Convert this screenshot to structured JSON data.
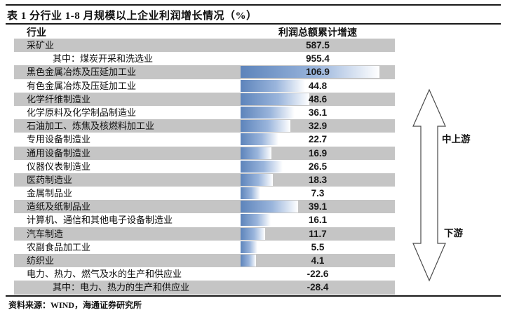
{
  "title": "表 1 分行业 1-8 月规模以上企业利润增长情况（%）",
  "table": {
    "columns": [
      "行业",
      "利润总额累计增速"
    ],
    "rows": [
      {
        "industry": "采矿业",
        "value": 587.5,
        "indent": false,
        "bar": false
      },
      {
        "industry": "其中：煤炭开采和洗选业",
        "value": 955.4,
        "indent": true,
        "bar": false
      },
      {
        "industry": "黑色金属冶炼及压延加工业",
        "value": 106.9,
        "indent": false,
        "bar": true
      },
      {
        "industry": "有色金属冶炼及压延加工业",
        "value": 44.8,
        "indent": false,
        "bar": true
      },
      {
        "industry": "化学纤维制造业",
        "value": 48.6,
        "indent": false,
        "bar": true
      },
      {
        "industry": "化学原料及化学制品制造业",
        "value": 36.1,
        "indent": false,
        "bar": true
      },
      {
        "industry": "石油加工、炼焦及核燃料加工业",
        "value": 32.9,
        "indent": false,
        "bar": true
      },
      {
        "industry": "专用设备制造业",
        "value": 22.7,
        "indent": false,
        "bar": true
      },
      {
        "industry": "通用设备制造业",
        "value": 16.9,
        "indent": false,
        "bar": true
      },
      {
        "industry": "仪器仪表制造业",
        "value": 26.5,
        "indent": false,
        "bar": true
      },
      {
        "industry": "医药制造业",
        "value": 18.3,
        "indent": false,
        "bar": true
      },
      {
        "industry": "金属制品业",
        "value": 7.3,
        "indent": false,
        "bar": true
      },
      {
        "industry": "造纸及纸制品业",
        "value": 39.1,
        "indent": false,
        "bar": true
      },
      {
        "industry": "计算机、通信和其他电子设备制造业",
        "value": 16.1,
        "indent": false,
        "bar": true
      },
      {
        "industry": "汽车制造",
        "value": 11.7,
        "indent": false,
        "bar": true
      },
      {
        "industry": "农副食品加工业",
        "value": 5.5,
        "indent": false,
        "bar": true
      },
      {
        "industry": "纺织业",
        "value": 4.1,
        "indent": false,
        "bar": true
      },
      {
        "industry": "电力、热力、燃气及水的生产和供应业",
        "value": -22.6,
        "indent": false,
        "bar": false
      },
      {
        "industry": "其中：电力、热力的生产和供应业",
        "value": -28.4,
        "indent": true,
        "bar": false
      }
    ]
  },
  "chart_data": {
    "type": "bar",
    "orientation": "horizontal",
    "title": "表 1 分行业 1-8 月规模以上企业利润增长情况（%）",
    "value_label": "利润总额累计增速",
    "categories": [
      "采矿业",
      "其中：煤炭开采和洗选业",
      "黑色金属冶炼及压延加工业",
      "有色金属冶炼及压延加工业",
      "化学纤维制造业",
      "化学原料及化学制品制造业",
      "石油加工、炼焦及核燃料加工业",
      "专用设备制造业",
      "通用设备制造业",
      "仪器仪表制造业",
      "医药制造业",
      "金属制品业",
      "造纸及纸制品业",
      "计算机、通信和其他电子设备制造业",
      "汽车制造",
      "农副食品加工业",
      "纺织业",
      "电力、热力、燃气及水的生产和供应业",
      "其中：电力、热力的生产和供应业"
    ],
    "values": [
      587.5,
      955.4,
      106.9,
      44.8,
      48.6,
      36.1,
      32.9,
      22.7,
      16.9,
      26.5,
      18.3,
      7.3,
      39.1,
      16.1,
      11.7,
      5.5,
      4.1,
      -22.6,
      -28.4
    ],
    "data_bar_rows": "黑色金属冶炼及压延加工业 through 纺织业",
    "annotations": [
      "中上游",
      "下游"
    ]
  },
  "annotations": {
    "upstream": "中上游",
    "downstream": "下游"
  },
  "source": "资料来源：WIND，海通证券研究所",
  "colors": {
    "row_stripe": "#c5c5c5",
    "bar_dark": "#5d84bb",
    "bar_mid": "#9ab5dc",
    "rule": "#1a1a1a"
  }
}
